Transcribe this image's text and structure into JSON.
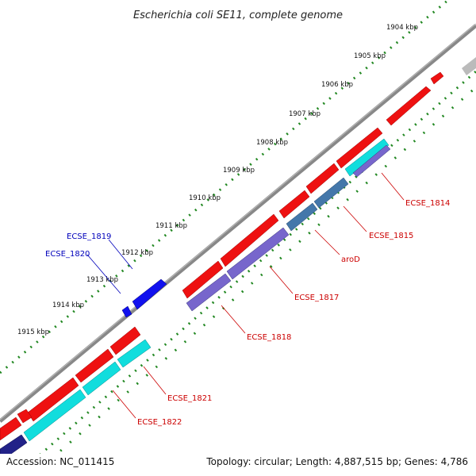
{
  "title": "Escherichia coli SE11, complete genome",
  "footer": {
    "accession": "Accession: NC_011415",
    "summary": "Topology: circular; Length: 4,887,515 bp; Genes: 4,786"
  },
  "ruler_labels": [
    "1904 kbp",
    "1905 kbp",
    "1906 kbp",
    "1907 kbp",
    "1908 kbp",
    "1909 kbp",
    "1910 kbp",
    "1911 kbp",
    "1912 kbp",
    "1913 kbp",
    "1914 kbp",
    "1915 kbp"
  ],
  "gene_labels": {
    "ecse_1814": "ECSE_1814",
    "ecse_1815": "ECSE_1815",
    "arod": "aroD",
    "ecse_1817": "ECSE_1817",
    "ecse_1818": "ECSE_1818",
    "ecse_1819": "ECSE_1819",
    "ecse_1820": "ECSE_1820",
    "ecse_1821": "ECSE_1821",
    "ecse_1822": "ECSE_1822"
  },
  "colors": {
    "cds_red": "#ee1111",
    "cds_blue": "#1111ee",
    "cyan": "#11dddd",
    "steel": "#4477aa",
    "purple": "#7766cc",
    "navy": "#222288",
    "backbone": "#888888",
    "tick_green": "#228822",
    "label_red": "#cc0000",
    "label_blue": "#0000bb"
  }
}
